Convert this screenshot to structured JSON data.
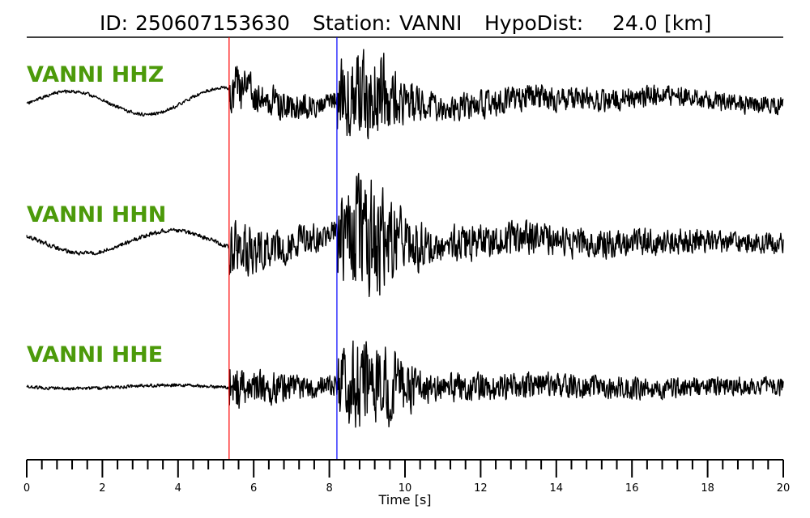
{
  "chart_data": {
    "type": "line",
    "title": {
      "id_label": "ID:",
      "id_value": "250607153630",
      "station_label": "Station:",
      "station_value": "VANNI",
      "dist_label": "HypoDist:",
      "dist_value": "24.0",
      "dist_unit": "[km]"
    },
    "xlabel": "Time [s]",
    "xlim": [
      0,
      20
    ],
    "x_tick_labels": [
      "0",
      "2",
      "4",
      "6",
      "8",
      "10",
      "12",
      "14",
      "16",
      "18",
      "20"
    ],
    "minor_tick_step": 0.4,
    "series": [
      {
        "name": "VANNI HHZ",
        "amplitude_scale": 1.0,
        "seed": 11
      },
      {
        "name": "VANNI HHN",
        "amplitude_scale": 1.25,
        "seed": 29
      },
      {
        "name": "VANNI HHE",
        "amplitude_scale": 1.0,
        "seed": 47
      }
    ],
    "picks": [
      {
        "phase": "P",
        "time": 5.35,
        "color": "#ff0000"
      },
      {
        "phase": "S",
        "time": 8.2,
        "color": "#0000ff"
      }
    ],
    "colors": {
      "trace": "#000000",
      "channel_label": "#4c9a0a"
    }
  }
}
